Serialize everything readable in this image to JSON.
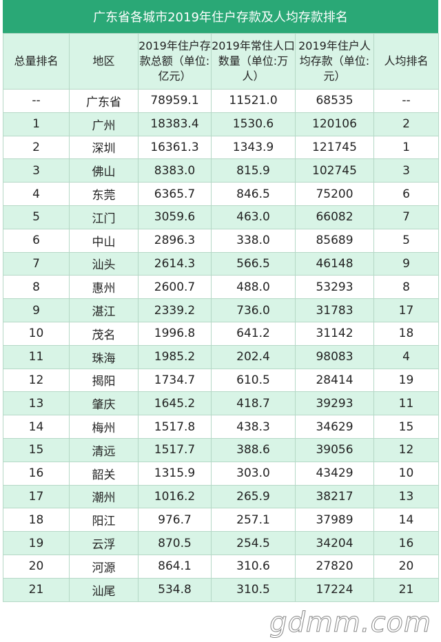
{
  "title": "广东省各城市2019年住户存款及人均存款排名",
  "headers": [
    "总量排名",
    "地区",
    "2019年住户存款总额（单位:亿元）",
    "2019年常住人口数量（单位:万人）",
    "2019年住户人均存款（单位:元）",
    "人均排名"
  ],
  "rows": [
    [
      "--",
      "广东省",
      "78959.1",
      "11521.0",
      "68535",
      "--"
    ],
    [
      "1",
      "广州",
      "18383.4",
      "1530.6",
      "120106",
      "2"
    ],
    [
      "2",
      "深圳",
      "16361.3",
      "1343.9",
      "121745",
      "1"
    ],
    [
      "3",
      "佛山",
      "8383.0",
      "815.9",
      "102745",
      "3"
    ],
    [
      "4",
      "东莞",
      "6365.7",
      "846.5",
      "75200",
      "6"
    ],
    [
      "5",
      "江门",
      "3059.6",
      "463.0",
      "66082",
      "7"
    ],
    [
      "6",
      "中山",
      "2896.3",
      "338.0",
      "85689",
      "5"
    ],
    [
      "7",
      "汕头",
      "2614.3",
      "566.5",
      "46148",
      "9"
    ],
    [
      "8",
      "惠州",
      "2600.7",
      "488.0",
      "53293",
      "8"
    ],
    [
      "9",
      "湛江",
      "2339.2",
      "736.0",
      "31783",
      "17"
    ],
    [
      "10",
      "茂名",
      "1996.8",
      "641.2",
      "31142",
      "18"
    ],
    [
      "11",
      "珠海",
      "1985.2",
      "202.4",
      "98083",
      "4"
    ],
    [
      "12",
      "揭阳",
      "1734.7",
      "610.5",
      "28414",
      "19"
    ],
    [
      "13",
      "肇庆",
      "1645.2",
      "418.7",
      "39293",
      "11"
    ],
    [
      "14",
      "梅州",
      "1517.8",
      "438.3",
      "34629",
      "15"
    ],
    [
      "15",
      "清远",
      "1517.7",
      "388.6",
      "39056",
      "12"
    ],
    [
      "16",
      "韶关",
      "1315.9",
      "303.0",
      "43429",
      "10"
    ],
    [
      "17",
      "潮州",
      "1016.2",
      "265.9",
      "38217",
      "13"
    ],
    [
      "18",
      "阳江",
      "976.7",
      "257.1",
      "37989",
      "14"
    ],
    [
      "19",
      "云浮",
      "870.5",
      "254.5",
      "34204",
      "16"
    ],
    [
      "20",
      "河源",
      "864.1",
      "310.6",
      "27820",
      "20"
    ],
    [
      "21",
      "汕尾",
      "534.8",
      "310.5",
      "17224",
      "21"
    ]
  ],
  "watermark": "gdmm.com",
  "colors": {
    "title_bg": "#2aa876",
    "row_alt": "#d8f4e6",
    "border": "#b5d8c6"
  }
}
